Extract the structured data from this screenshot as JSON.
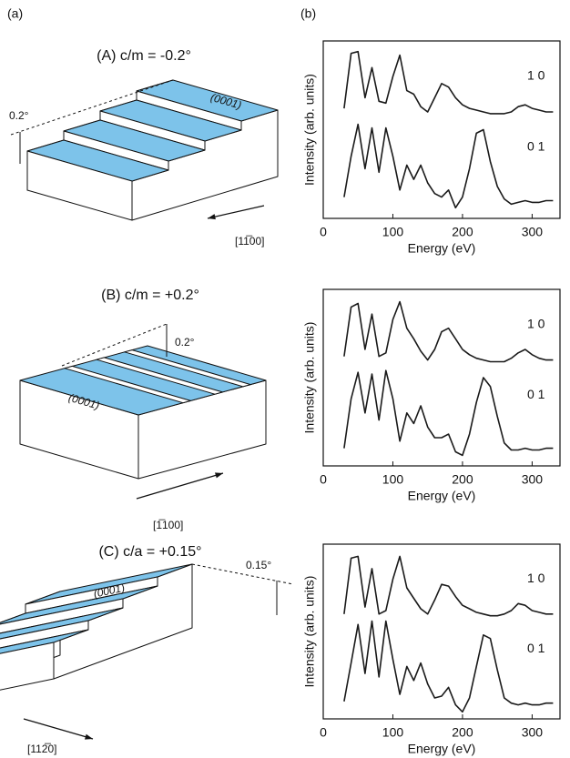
{
  "panel_labels": [
    "(a)",
    "(b)"
  ],
  "diagrams": [
    {
      "title": "(A) c/m = -0.2°",
      "angle": "0.2°",
      "surface": "(0001)",
      "direction": "[11̅00]"
    },
    {
      "title": "(B) c/m = +0.2°",
      "angle": "0.2°",
      "surface": "(0001)",
      "direction": "[1̅100]"
    },
    {
      "title": "(C) c/a = +0.15°",
      "angle": "0.15°",
      "surface": "(0001)",
      "direction": "[112̅0]"
    }
  ],
  "chart_data": [
    {
      "type": "line",
      "xlabel": "Energy (eV)",
      "ylabel": "Intensity (arb. units)",
      "x": [
        30,
        40,
        50,
        60,
        70,
        80,
        90,
        100,
        110,
        120,
        130,
        140,
        150,
        160,
        170,
        180,
        190,
        200,
        210,
        220,
        230,
        240,
        250,
        260,
        270,
        280,
        290,
        300,
        310,
        320,
        330
      ],
      "series": [
        {
          "name": "1 0",
          "color": "#1a1a1a",
          "values": [
            6.2,
            9.3,
            9.4,
            6.8,
            8.5,
            6.6,
            6.5,
            8.0,
            9.2,
            7.2,
            7.0,
            6.3,
            6.0,
            6.8,
            7.6,
            7.4,
            6.8,
            6.4,
            6.2,
            6.1,
            6.0,
            5.9,
            5.9,
            5.9,
            6.0,
            6.3,
            6.4,
            6.2,
            6.1,
            6.0,
            6.0
          ]
        },
        {
          "name": "0 1",
          "color": "#1a1a1a",
          "values": [
            1.2,
            3.5,
            5.3,
            2.8,
            5.1,
            2.6,
            5.1,
            3.5,
            1.6,
            3.0,
            2.2,
            3.0,
            2.0,
            1.4,
            1.2,
            1.6,
            0.6,
            1.2,
            2.8,
            4.8,
            5.0,
            3.2,
            1.8,
            1.1,
            0.8,
            0.9,
            1.0,
            0.9,
            0.9,
            1.0,
            1.0
          ]
        }
      ],
      "xlim": [
        0,
        340
      ],
      "ylim": [
        0,
        10
      ],
      "xticks": [
        0,
        100,
        200,
        300
      ]
    },
    {
      "type": "line",
      "xlabel": "Energy (eV)",
      "ylabel": "Intensity (arb. units)",
      "x": [
        30,
        40,
        50,
        60,
        70,
        80,
        90,
        100,
        110,
        120,
        130,
        140,
        150,
        160,
        170,
        180,
        190,
        200,
        210,
        220,
        230,
        240,
        250,
        260,
        270,
        280,
        290,
        300,
        310,
        320,
        330
      ],
      "series": [
        {
          "name": "1 0",
          "color": "#1a1a1a",
          "values": [
            6.2,
            9.0,
            9.2,
            6.6,
            8.6,
            6.2,
            6.4,
            8.3,
            9.3,
            7.8,
            7.2,
            6.5,
            6.0,
            6.6,
            7.6,
            7.8,
            7.2,
            6.6,
            6.3,
            6.1,
            6.0,
            5.9,
            5.9,
            5.9,
            6.1,
            6.4,
            6.6,
            6.3,
            6.1,
            6.0,
            6.0
          ]
        },
        {
          "name": "0 1",
          "color": "#1a1a1a",
          "values": [
            1.0,
            3.8,
            5.3,
            3.0,
            5.2,
            2.6,
            5.4,
            3.8,
            1.4,
            3.0,
            2.4,
            3.4,
            2.2,
            1.6,
            1.6,
            1.8,
            0.8,
            0.6,
            1.8,
            3.6,
            5.0,
            4.5,
            2.8,
            1.3,
            0.9,
            0.9,
            1.0,
            0.9,
            0.9,
            1.0,
            1.0
          ]
        }
      ],
      "xlim": [
        0,
        340
      ],
      "ylim": [
        0,
        10
      ],
      "xticks": [
        0,
        100,
        200,
        300
      ]
    },
    {
      "type": "line",
      "xlabel": "Energy (eV)",
      "ylabel": "Intensity (arb. units)",
      "x": [
        30,
        40,
        50,
        60,
        70,
        80,
        90,
        100,
        110,
        120,
        130,
        140,
        150,
        160,
        170,
        180,
        190,
        200,
        210,
        220,
        230,
        240,
        250,
        260,
        270,
        280,
        290,
        300,
        310,
        320,
        330
      ],
      "series": [
        {
          "name": "1 0",
          "color": "#1a1a1a",
          "values": [
            6.0,
            9.2,
            9.3,
            6.4,
            8.6,
            6.0,
            6.2,
            8.0,
            9.3,
            7.5,
            6.9,
            6.3,
            6.0,
            6.8,
            7.7,
            7.6,
            7.0,
            6.5,
            6.3,
            6.1,
            6.0,
            5.9,
            5.9,
            6.0,
            6.2,
            6.6,
            6.5,
            6.2,
            6.1,
            6.0,
            6.0
          ]
        },
        {
          "name": "0 1",
          "color": "#1a1a1a",
          "values": [
            1.0,
            3.2,
            5.4,
            2.6,
            5.6,
            2.4,
            5.6,
            3.4,
            1.4,
            3.0,
            2.2,
            3.2,
            2.0,
            1.2,
            1.3,
            1.8,
            0.8,
            0.4,
            1.2,
            3.0,
            4.8,
            4.6,
            2.8,
            1.2,
            0.9,
            0.8,
            0.9,
            0.8,
            0.8,
            0.9,
            0.9
          ]
        }
      ],
      "xlim": [
        0,
        340
      ],
      "ylim": [
        0,
        10
      ],
      "xticks": [
        0,
        100,
        200,
        300
      ]
    }
  ]
}
